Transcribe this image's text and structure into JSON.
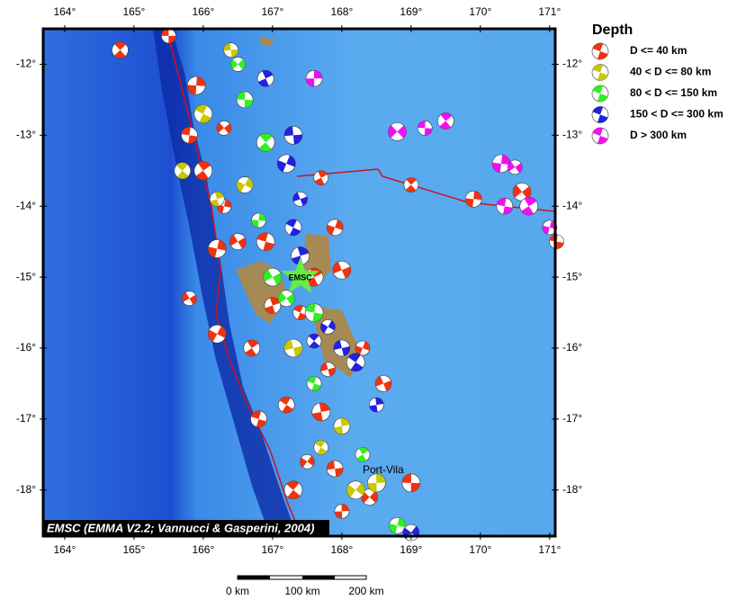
{
  "map": {
    "xlim": [
      163.69,
      171.08
    ],
    "ylim": [
      -18.65,
      -11.5
    ],
    "xticks": [
      {
        "value": 164,
        "label": "164°"
      },
      {
        "value": 165,
        "label": "165°"
      },
      {
        "value": 166,
        "label": "166°"
      },
      {
        "value": 167,
        "label": "167°"
      },
      {
        "value": 168,
        "label": "168°"
      },
      {
        "value": 169,
        "label": "169°"
      },
      {
        "value": 170,
        "label": "170°"
      },
      {
        "value": 171,
        "label": "171°"
      }
    ],
    "yticks": [
      {
        "value": -12,
        "label": "-12°"
      },
      {
        "value": -13,
        "label": "-13°"
      },
      {
        "value": -14,
        "label": "-14°"
      },
      {
        "value": -15,
        "label": "-15°"
      },
      {
        "value": -16,
        "label": "-16°"
      },
      {
        "value": -17,
        "label": "-17°"
      },
      {
        "value": -18,
        "label": "-18°"
      }
    ],
    "legend": {
      "title": "Depth",
      "entries": [
        {
          "label": "D <= 40 km",
          "color": "#ee3311"
        },
        {
          "label": "40 < D <= 80 km",
          "color": "#c8c800"
        },
        {
          "label": "80 < D <= 150 km",
          "color": "#33ee22"
        },
        {
          "label": "150 < D <= 300 km",
          "color": "#2222dd"
        },
        {
          "label": "D > 300 km",
          "color": "#ee11ee"
        }
      ]
    },
    "events": [
      [
        165.5,
        -11.6,
        0
      ],
      [
        164.8,
        -11.8,
        0
      ],
      [
        165.9,
        -12.3,
        0
      ],
      [
        166.3,
        -12.9,
        0
      ],
      [
        165.8,
        -13.0,
        0
      ],
      [
        166.0,
        -13.5,
        0
      ],
      [
        166.3,
        -14.0,
        0
      ],
      [
        166.5,
        -14.5,
        0
      ],
      [
        166.9,
        -14.5,
        0
      ],
      [
        167.7,
        -13.6,
        0
      ],
      [
        167.9,
        -14.3,
        0
      ],
      [
        168.0,
        -14.9,
        0
      ],
      [
        167.4,
        -15.5,
        0
      ],
      [
        167.0,
        -15.4,
        0
      ],
      [
        166.2,
        -15.8,
        0
      ],
      [
        167.8,
        -16.3,
        0
      ],
      [
        167.2,
        -16.8,
        0
      ],
      [
        167.7,
        -16.9,
        0
      ],
      [
        167.5,
        -17.6,
        0
      ],
      [
        167.9,
        -17.7,
        0
      ],
      [
        167.3,
        -18.0,
        0
      ],
      [
        168.0,
        -18.3,
        0
      ],
      [
        168.4,
        -18.1,
        0
      ],
      [
        169.0,
        -17.9,
        0
      ],
      [
        169.0,
        -13.7,
        0
      ],
      [
        169.9,
        -13.9,
        0
      ],
      [
        170.6,
        -13.8,
        0
      ],
      [
        171.1,
        -14.5,
        0
      ],
      [
        166.7,
        -16.0,
        0
      ],
      [
        166.2,
        -14.6,
        0
      ],
      [
        165.8,
        -15.3,
        0
      ],
      [
        166.8,
        -17.0,
        0
      ],
      [
        167.6,
        -15.0,
        0
      ],
      [
        168.3,
        -16.0,
        0
      ],
      [
        168.6,
        -16.5,
        0
      ],
      [
        166.0,
        -12.7,
        1
      ],
      [
        166.2,
        -13.9,
        1
      ],
      [
        166.6,
        -13.7,
        1
      ],
      [
        167.3,
        -16.0,
        1
      ],
      [
        167.7,
        -17.4,
        1
      ],
      [
        168.0,
        -17.1,
        1
      ],
      [
        168.2,
        -18.0,
        1
      ],
      [
        166.4,
        -11.8,
        1
      ],
      [
        165.7,
        -13.5,
        1
      ],
      [
        168.5,
        -17.9,
        1
      ],
      [
        166.5,
        -12.0,
        2
      ],
      [
        166.6,
        -12.5,
        2
      ],
      [
        166.9,
        -13.1,
        2
      ],
      [
        166.8,
        -14.2,
        2
      ],
      [
        167.2,
        -15.3,
        2
      ],
      [
        167.6,
        -15.5,
        2
      ],
      [
        168.3,
        -17.5,
        2
      ],
      [
        168.8,
        -18.5,
        2
      ],
      [
        167.0,
        -15.0,
        2
      ],
      [
        167.6,
        -16.5,
        2
      ],
      [
        166.9,
        -12.2,
        3
      ],
      [
        167.2,
        -13.4,
        3
      ],
      [
        167.4,
        -13.9,
        3
      ],
      [
        167.3,
        -14.3,
        3
      ],
      [
        167.4,
        -14.7,
        3
      ],
      [
        167.8,
        -15.7,
        3
      ],
      [
        168.0,
        -16.0,
        3
      ],
      [
        168.2,
        -16.2,
        3
      ],
      [
        168.5,
        -16.8,
        3
      ],
      [
        169.0,
        -18.6,
        3
      ],
      [
        167.3,
        -13.0,
        3
      ],
      [
        167.6,
        -15.9,
        3
      ],
      [
        167.6,
        -12.2,
        4
      ],
      [
        168.8,
        -12.95,
        4
      ],
      [
        169.2,
        -12.9,
        4
      ],
      [
        169.5,
        -12.8,
        4
      ],
      [
        170.3,
        -13.4,
        4
      ],
      [
        170.5,
        -13.45,
        4
      ],
      [
        170.35,
        -14.0,
        4
      ],
      [
        170.7,
        -14.0,
        4
      ],
      [
        171.0,
        -14.3,
        4
      ]
    ],
    "epicenter": {
      "lon": 167.4,
      "lat": -15.0,
      "label": "EMSC",
      "color": "#66ee44"
    },
    "place": {
      "lon": 168.3,
      "lat": -17.72,
      "label": "Port-Vila"
    },
    "credit": "EMSC (EMMA V2.2; Vannucci & Gasperini, 2004)",
    "scale_bar": [
      "0 km",
      "100 km",
      "200 km"
    ]
  }
}
